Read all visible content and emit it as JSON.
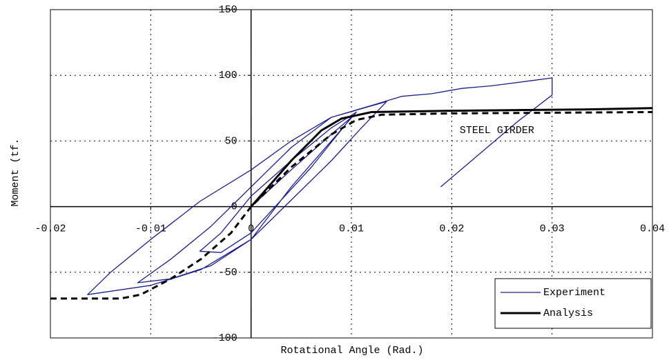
{
  "chart_data": {
    "type": "line",
    "xlabel": "Rotational Angle (Rad.)",
    "ylabel": "Moment (tf.",
    "annotation": {
      "text": "STEEL GIRDER",
      "x": 0.0245,
      "y": 58
    },
    "xlim": [
      -0.02,
      0.04
    ],
    "xticks": [
      -0.02,
      -0.01,
      0,
      0.01,
      0.02,
      0.03,
      0.04
    ],
    "ylim": [
      -100,
      150
    ],
    "yticks": [
      -100,
      -50,
      0,
      50,
      100,
      150
    ],
    "grid": true,
    "legend": "lower right",
    "series": [
      {
        "name": "Experiment",
        "color": "#1c1c8c",
        "style": "solid",
        "linewidth": 1.3,
        "x": [
          0,
          0.004,
          0.008,
          0.01,
          0.006,
          0.003,
          0,
          -0.003,
          -0.0051,
          -0.003,
          0,
          0.004,
          0.008,
          0.0105,
          0.008,
          0.004,
          0,
          -0.004,
          -0.008,
          -0.0113,
          -0.008,
          -0.004,
          0,
          0.004,
          0.008,
          0.0135,
          0.011,
          0.008,
          0.004,
          0,
          -0.005,
          -0.01,
          -0.0163,
          -0.014,
          -0.01,
          -0.0051,
          0,
          0.004,
          0.008,
          0.012,
          0.015,
          0.018,
          0.021,
          0.024,
          0.028,
          0.03,
          0.03,
          0.0266,
          0.0189
        ],
        "values": [
          0,
          28,
          55,
          68,
          30,
          5,
          -20,
          -35,
          -34,
          -20,
          8,
          35,
          60,
          72,
          50,
          15,
          -25,
          -45,
          -55,
          -58,
          -40,
          -15,
          15,
          45,
          68,
          80,
          60,
          35,
          5,
          -25,
          -48,
          -60,
          -67,
          -50,
          -25,
          4,
          28,
          50,
          68,
          77,
          84,
          86,
          90,
          92,
          96,
          98,
          85,
          65,
          15
        ]
      },
      {
        "name": "Analysis",
        "color": "#000000",
        "style": "solid",
        "linewidth": 3,
        "x": [
          0,
          0.004,
          0.007,
          0.009,
          0.012,
          0.02,
          0.033,
          0.04
        ],
        "values": [
          0,
          35,
          58,
          67,
          72,
          73,
          74,
          75
        ]
      },
      {
        "color": "#000000",
        "style": "dashed",
        "linewidth": 3,
        "x": [
          -0.02,
          -0.013,
          -0.011,
          -0.008,
          -0.005,
          -0.002,
          0,
          0.004,
          0.008,
          0.0105,
          0.013,
          0.02,
          0.04
        ],
        "values": [
          -70,
          -70,
          -67,
          -55,
          -40,
          -20,
          0,
          30,
          55,
          66,
          70,
          71,
          72
        ]
      }
    ]
  }
}
